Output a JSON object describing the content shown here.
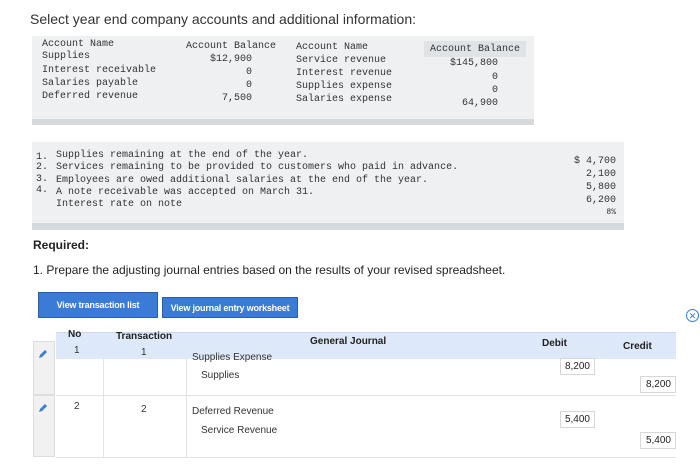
{
  "heading": "Select year end company accounts and additional information:",
  "accounts": {
    "header": {
      "name1": "Account Name",
      "bal1": "Account Balance",
      "name2": "Account Name",
      "bal2": "Account Balance"
    },
    "left": [
      {
        "name": "Supplies",
        "balance": "$12,900"
      },
      {
        "name": "Interest receivable",
        "balance": "0"
      },
      {
        "name": "Salaries payable",
        "balance": "0"
      },
      {
        "name": "Deferred revenue",
        "balance": "7,500"
      }
    ],
    "right": [
      {
        "name": "Service revenue",
        "balance": "$145,800"
      },
      {
        "name": "Interest revenue",
        "balance": "0"
      },
      {
        "name": "Supplies expense",
        "balance": "0"
      },
      {
        "name": "Salaries expense",
        "balance": "64,900"
      }
    ]
  },
  "additional_info": {
    "items": [
      {
        "num": "1.",
        "text": "Supplies remaining at the end of the year.",
        "value": "$ 4,700"
      },
      {
        "num": "2.",
        "text": "Services remaining to be provided to customers who paid in advance.",
        "value": "2,100"
      },
      {
        "num": "3.",
        "text": "Employees are owed additional salaries at the end of the year.",
        "value": "5,800"
      },
      {
        "num": "4.",
        "text": "A note receivable was accepted on March 31.",
        "value": "6,200"
      },
      {
        "num": "",
        "text": "Interest rate on note",
        "value": "8%"
      }
    ]
  },
  "required": {
    "title": "Required:",
    "text": "1. Prepare the adjusting journal entries based on the results of your revised spreadsheet."
  },
  "tabs": {
    "transaction_list": "View transaction list",
    "journal_worksheet": "View journal entry worksheet"
  },
  "journal": {
    "headers": {
      "no": "No",
      "transaction": "Transaction",
      "general_journal": "General Journal",
      "debit": "Debit",
      "credit": "Credit"
    },
    "rows": [
      {
        "no": "1",
        "transaction": "1",
        "debit_account": "Supplies Expense",
        "credit_account": "Supplies",
        "debit": "8,200",
        "credit": "8,200"
      },
      {
        "no": "2",
        "transaction": "2",
        "debit_account": "Deferred Revenue",
        "credit_account": "Service Revenue",
        "debit": "5,400",
        "credit": "5,400"
      }
    ]
  },
  "icons": {
    "edit": "pencil-icon",
    "close": "close-icon"
  },
  "colors": {
    "tab_blue": "#3a7bd5",
    "header_blue": "#dde9f9",
    "panel_gray": "#eef0f2"
  }
}
